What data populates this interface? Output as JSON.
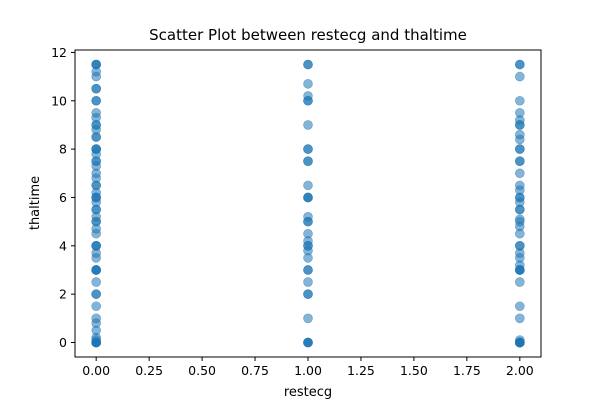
{
  "chart_data": {
    "type": "scatter",
    "title": "Scatter Plot between restecg and thaltime",
    "xlabel": "restecg",
    "ylabel": "thaltime",
    "xlim": [
      -0.1,
      2.1
    ],
    "ylim": [
      -0.6,
      12.1
    ],
    "xticks": [
      0.0,
      0.25,
      0.5,
      0.75,
      1.0,
      1.25,
      1.5,
      1.75,
      2.0
    ],
    "xtick_labels": [
      "0.00",
      "0.25",
      "0.50",
      "0.75",
      "1.00",
      "1.25",
      "1.50",
      "1.75",
      "2.00"
    ],
    "yticks": [
      0,
      2,
      4,
      6,
      8,
      10,
      12
    ],
    "ytick_labels": [
      "0",
      "2",
      "4",
      "6",
      "8",
      "10",
      "12"
    ],
    "grid": false,
    "marker_color": "#1f77b4",
    "marker_alpha": 0.55,
    "series": [
      {
        "x": [
          0,
          0,
          0,
          0,
          0,
          0,
          0,
          0,
          0,
          0,
          0,
          0,
          0,
          0,
          0,
          0,
          0,
          0,
          0,
          0,
          0,
          0,
          0,
          0,
          0,
          0,
          0,
          0,
          0,
          0,
          0,
          0,
          0,
          0,
          0,
          0,
          0,
          0,
          0,
          0,
          0,
          0,
          0,
          0,
          0,
          0,
          0,
          0,
          0,
          0,
          0,
          0,
          0,
          0,
          0,
          0,
          0,
          0,
          0,
          0,
          0,
          0,
          0,
          1,
          1,
          1,
          1,
          1,
          1,
          1,
          1,
          1,
          1,
          1,
          1,
          1,
          1,
          1,
          1,
          1,
          1,
          1,
          1,
          1,
          1,
          1,
          1,
          1,
          1,
          1,
          1,
          1,
          1,
          1,
          1,
          1,
          1,
          2,
          2,
          2,
          2,
          2,
          2,
          2,
          2,
          2,
          2,
          2,
          2,
          2,
          2,
          2,
          2,
          2,
          2,
          2,
          2,
          2,
          2,
          2,
          2,
          2,
          2,
          2,
          2,
          2,
          2,
          2,
          2,
          2,
          2,
          2,
          2,
          2,
          2,
          2,
          2,
          2,
          2,
          2,
          2,
          2,
          2,
          2,
          2,
          2
        ],
        "y": [
          11.5,
          11.5,
          11.5,
          11.2,
          11.0,
          10.5,
          10.5,
          10.0,
          10.0,
          9.5,
          9.3,
          9.0,
          9.0,
          8.8,
          8.5,
          8.5,
          8.0,
          8.0,
          8.0,
          7.8,
          7.5,
          7.5,
          7.3,
          7.0,
          6.8,
          6.5,
          6.5,
          6.2,
          6.0,
          6.0,
          6.0,
          5.8,
          5.5,
          5.5,
          5.2,
          5.0,
          5.0,
          4.7,
          4.5,
          4.0,
          4.0,
          4.0,
          3.7,
          3.5,
          3.0,
          3.0,
          3.0,
          3.0,
          2.5,
          2.0,
          2.0,
          1.5,
          1.0,
          0.8,
          0.5,
          0.2,
          0.1,
          0.0,
          0.0,
          0.0,
          0.0,
          0.0,
          0.0,
          11.5,
          11.5,
          10.7,
          10.2,
          10.0,
          10.0,
          9.0,
          8.0,
          8.0,
          7.5,
          7.5,
          6.5,
          6.0,
          6.0,
          6.0,
          5.2,
          5.0,
          5.0,
          4.5,
          4.2,
          4.0,
          4.0,
          3.8,
          3.5,
          3.0,
          3.0,
          2.5,
          2.0,
          2.0,
          1.0,
          0.0,
          0.0,
          0.0,
          0.0,
          11.5,
          11.5,
          11.0,
          10.0,
          9.5,
          9.2,
          9.0,
          9.0,
          8.6,
          8.4,
          8.0,
          8.0,
          7.5,
          7.5,
          7.0,
          6.5,
          6.3,
          6.0,
          6.0,
          5.8,
          5.5,
          5.5,
          5.1,
          5.0,
          4.8,
          4.5,
          4.0,
          4.0,
          3.7,
          3.5,
          3.2,
          3.0,
          3.0,
          3.0,
          3.0,
          2.5,
          1.5,
          1.0,
          0.1,
          0.0,
          0.0,
          0.0,
          0.0,
          0.0,
          0.0,
          0.0,
          0.0,
          0.0,
          0.0
        ]
      }
    ]
  }
}
